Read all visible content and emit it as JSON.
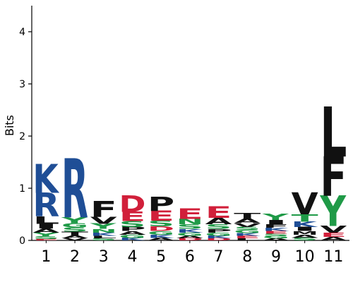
{
  "chart_data": {
    "type": "sequence-logo",
    "title": "",
    "xlabel": "",
    "ylabel": "Bits",
    "ylim": [
      0,
      4.5
    ],
    "yticks": [
      0,
      1,
      2,
      3,
      4
    ],
    "positions": [
      "1",
      "2",
      "3",
      "4",
      "5",
      "6",
      "7",
      "8",
      "9",
      "10",
      "11"
    ],
    "colors": {
      "basic": "#1f4e96",
      "acidic": "#d11f3a",
      "polar": "#1f9a47",
      "hydrophobic": "#111111",
      "other": "#8a5a9e"
    },
    "columns": [
      {
        "position": "1",
        "letters": [
          {
            "char": "K",
            "bits": 0.55,
            "color": "#1f4e96"
          },
          {
            "char": "R",
            "bits": 0.45,
            "color": "#1f4e96"
          },
          {
            "char": "L",
            "bits": 0.14,
            "color": "#111111"
          },
          {
            "char": "I",
            "bits": 0.09,
            "color": "#111111"
          },
          {
            "char": "A",
            "bits": 0.08,
            "color": "#111111"
          },
          {
            "char": "Y",
            "bits": 0.07,
            "color": "#1f9a47"
          },
          {
            "char": "S",
            "bits": 0.05,
            "color": "#1f9a47"
          },
          {
            "char": "E",
            "bits": 0.03,
            "color": "#d11f3a"
          }
        ]
      },
      {
        "position": "2",
        "letters": [
          {
            "char": "R",
            "bits": 1.12,
            "color": "#1f4e96"
          },
          {
            "char": "T",
            "bits": 0.08,
            "color": "#111111"
          },
          {
            "char": "Y",
            "bits": 0.11,
            "color": "#1f9a47"
          },
          {
            "char": "S",
            "bits": 0.08,
            "color": "#1f9a47"
          },
          {
            "char": "G",
            "bits": 0.08,
            "color": "#1f9a47"
          },
          {
            "char": "A",
            "bits": 0.05,
            "color": "#111111"
          },
          {
            "char": "V",
            "bits": 0.04,
            "color": "#111111"
          }
        ]
      },
      {
        "position": "3",
        "letters": [
          {
            "char": "F",
            "bits": 0.3,
            "color": "#111111"
          },
          {
            "char": "V",
            "bits": 0.13,
            "color": "#111111"
          },
          {
            "char": "Y",
            "bits": 0.1,
            "color": "#1f9a47"
          },
          {
            "char": "N",
            "bits": 0.07,
            "color": "#1f9a47"
          },
          {
            "char": "K",
            "bits": 0.06,
            "color": "#1f4e96"
          },
          {
            "char": "L",
            "bits": 0.05,
            "color": "#111111"
          },
          {
            "char": "S",
            "bits": 0.04,
            "color": "#1f9a47"
          }
        ]
      },
      {
        "position": "4",
        "letters": [
          {
            "char": "D",
            "bits": 0.31,
            "color": "#d11f3a"
          },
          {
            "char": "E",
            "bits": 0.18,
            "color": "#d11f3a"
          },
          {
            "char": "S",
            "bits": 0.11,
            "color": "#1f9a47"
          },
          {
            "char": "P",
            "bits": 0.08,
            "color": "#111111"
          },
          {
            "char": "A",
            "bits": 0.07,
            "color": "#111111"
          },
          {
            "char": "G",
            "bits": 0.06,
            "color": "#1f9a47"
          },
          {
            "char": "K",
            "bits": 0.05,
            "color": "#1f4e96"
          }
        ]
      },
      {
        "position": "5",
        "letters": [
          {
            "char": "P",
            "bits": 0.27,
            "color": "#111111"
          },
          {
            "char": "E",
            "bits": 0.19,
            "color": "#d11f3a"
          },
          {
            "char": "S",
            "bits": 0.11,
            "color": "#1f9a47"
          },
          {
            "char": "D",
            "bits": 0.09,
            "color": "#d11f3a"
          },
          {
            "char": "G",
            "bits": 0.07,
            "color": "#1f9a47"
          },
          {
            "char": "K",
            "bits": 0.06,
            "color": "#1f4e96"
          },
          {
            "char": "A",
            "bits": 0.05,
            "color": "#111111"
          }
        ]
      },
      {
        "position": "6",
        "letters": [
          {
            "char": "E",
            "bits": 0.2,
            "color": "#d11f3a"
          },
          {
            "char": "N",
            "bits": 0.1,
            "color": "#1f9a47"
          },
          {
            "char": "S",
            "bits": 0.09,
            "color": "#1f9a47"
          },
          {
            "char": "K",
            "bits": 0.07,
            "color": "#1f4e96"
          },
          {
            "char": "G",
            "bits": 0.06,
            "color": "#1f9a47"
          },
          {
            "char": "A",
            "bits": 0.05,
            "color": "#111111"
          },
          {
            "char": "D",
            "bits": 0.04,
            "color": "#d11f3a"
          }
        ]
      },
      {
        "position": "7",
        "letters": [
          {
            "char": "E",
            "bits": 0.22,
            "color": "#d11f3a"
          },
          {
            "char": "A",
            "bits": 0.12,
            "color": "#111111"
          },
          {
            "char": "S",
            "bits": 0.09,
            "color": "#1f9a47"
          },
          {
            "char": "P",
            "bits": 0.07,
            "color": "#111111"
          },
          {
            "char": "G",
            "bits": 0.06,
            "color": "#1f9a47"
          },
          {
            "char": "K",
            "bits": 0.05,
            "color": "#1f4e96"
          },
          {
            "char": "D",
            "bits": 0.04,
            "color": "#d11f3a"
          }
        ]
      },
      {
        "position": "8",
        "letters": [
          {
            "char": "T",
            "bits": 0.1,
            "color": "#111111"
          },
          {
            "char": "A",
            "bits": 0.09,
            "color": "#111111"
          },
          {
            "char": "V",
            "bits": 0.07,
            "color": "#111111"
          },
          {
            "char": "G",
            "bits": 0.06,
            "color": "#1f9a47"
          },
          {
            "char": "S",
            "bits": 0.06,
            "color": "#1f9a47"
          },
          {
            "char": "E",
            "bits": 0.05,
            "color": "#d11f3a"
          },
          {
            "char": "K",
            "bits": 0.05,
            "color": "#1f4e96"
          },
          {
            "char": "L",
            "bits": 0.04,
            "color": "#111111"
          }
        ]
      },
      {
        "position": "9",
        "letters": [
          {
            "char": "Y",
            "bits": 0.12,
            "color": "#1f9a47"
          },
          {
            "char": "I",
            "bits": 0.08,
            "color": "#111111"
          },
          {
            "char": "F",
            "bits": 0.07,
            "color": "#111111"
          },
          {
            "char": "K",
            "bits": 0.06,
            "color": "#1f4e96"
          },
          {
            "char": "S",
            "bits": 0.05,
            "color": "#1f9a47"
          },
          {
            "char": "E",
            "bits": 0.05,
            "color": "#d11f3a"
          },
          {
            "char": "A",
            "bits": 0.04,
            "color": "#111111"
          },
          {
            "char": "G",
            "bits": 0.04,
            "color": "#1f9a47"
          }
        ]
      },
      {
        "position": "10",
        "letters": [
          {
            "char": "V",
            "bits": 0.42,
            "color": "#111111"
          },
          {
            "char": "T",
            "bits": 0.14,
            "color": "#1f9a47"
          },
          {
            "char": "K",
            "bits": 0.1,
            "color": "#1f4e96"
          },
          {
            "char": "I",
            "bits": 0.08,
            "color": "#111111"
          },
          {
            "char": "M",
            "bits": 0.07,
            "color": "#111111"
          },
          {
            "char": "A",
            "bits": 0.06,
            "color": "#111111"
          },
          {
            "char": "S",
            "bits": 0.05,
            "color": "#1f9a47"
          }
        ]
      },
      {
        "position": "11",
        "letters": [
          {
            "char": "L",
            "bits": 0.95,
            "color": "#111111"
          },
          {
            "char": "F",
            "bits": 0.75,
            "color": "#111111"
          },
          {
            "char": "Y",
            "bits": 0.58,
            "color": "#1f9a47"
          },
          {
            "char": "V",
            "bits": 0.13,
            "color": "#111111"
          },
          {
            "char": "E",
            "bits": 0.08,
            "color": "#d11f3a"
          },
          {
            "char": "A",
            "bits": 0.07,
            "color": "#111111"
          }
        ]
      }
    ]
  }
}
